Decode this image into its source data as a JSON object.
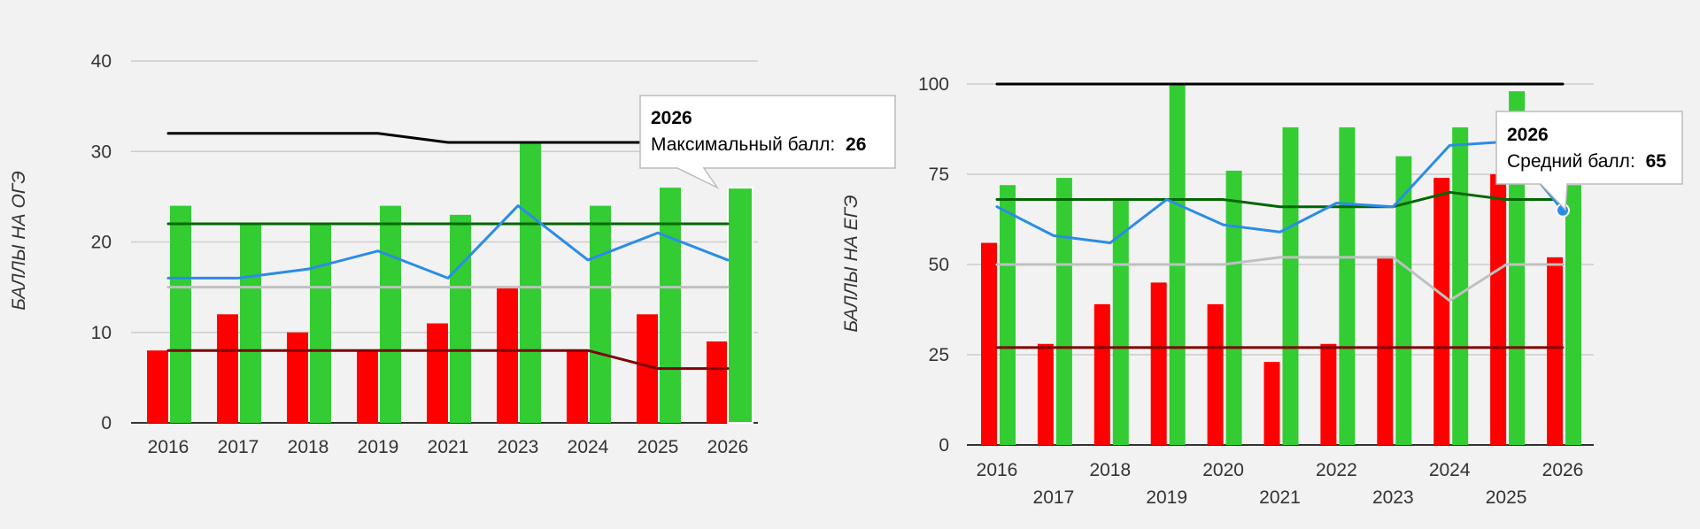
{
  "colors": {
    "background": "#f2f2f2",
    "grid": "#cccccc",
    "bar_min": "#ff0000",
    "bar_max": "#33cc33",
    "line_avg": "#2b8ce6",
    "line_threshold_max": "#000000",
    "line_dark_green": "#006600",
    "line_gray": "#c0c0c0",
    "line_dark_red": "#800000"
  },
  "chart_data": [
    {
      "type": "bar",
      "ylabel": "БАЛЛЫ НА ОГЭ",
      "ylim": [
        0,
        40
      ],
      "yticks": [
        0,
        10,
        20,
        30,
        40
      ],
      "categories": [
        "2016",
        "2017",
        "2018",
        "2019",
        "2021",
        "2023",
        "2024",
        "2025",
        "2026"
      ],
      "series": [
        {
          "type": "bar",
          "values": [
            8,
            12,
            10,
            8,
            11,
            15,
            8,
            12,
            9
          ]
        },
        {
          "type": "bar",
          "name": "Максимальный балл",
          "values": [
            24,
            22,
            22,
            24,
            23,
            31,
            24,
            26,
            26
          ]
        },
        {
          "type": "line",
          "values": [
            32,
            32,
            32,
            32,
            31,
            31,
            31,
            31,
            31
          ]
        },
        {
          "type": "line",
          "values": [
            22,
            22,
            22,
            22,
            22,
            22,
            22,
            22,
            22
          ]
        },
        {
          "type": "line",
          "values": [
            16,
            16,
            17,
            19,
            16,
            24,
            18,
            21,
            18
          ]
        },
        {
          "type": "line",
          "values": [
            15,
            15,
            15,
            15,
            15,
            15,
            15,
            15,
            15
          ]
        },
        {
          "type": "line",
          "values": [
            8,
            8,
            8,
            8,
            8,
            8,
            8,
            6,
            6
          ]
        }
      ],
      "tooltip": {
        "title": "2026",
        "label": "Максимальный балл:",
        "value": "26"
      }
    },
    {
      "type": "bar",
      "ylabel": "БАЛЛЫ НА ЕГЭ",
      "ylim": [
        0,
        100
      ],
      "yticks": [
        0,
        25,
        50,
        75,
        100
      ],
      "categories": [
        "2016",
        "2017",
        "2018",
        "2019",
        "2020",
        "2021",
        "2022",
        "2023",
        "2024",
        "2025",
        "2026"
      ],
      "series": [
        {
          "type": "bar",
          "values": [
            56,
            28,
            39,
            45,
            39,
            23,
            28,
            52,
            74,
            75,
            52
          ]
        },
        {
          "type": "bar",
          "values": [
            72,
            74,
            68,
            100,
            76,
            88,
            88,
            80,
            88,
            98,
            72
          ]
        },
        {
          "type": "line",
          "values": [
            100,
            100,
            100,
            100,
            100,
            100,
            100,
            100,
            100,
            100,
            100
          ]
        },
        {
          "type": "line",
          "values": [
            68,
            68,
            68,
            68,
            68,
            66,
            66,
            66,
            70,
            68,
            68
          ]
        },
        {
          "type": "line",
          "name": "Средний балл",
          "values": [
            66,
            58,
            56,
            68,
            61,
            59,
            67,
            66,
            83,
            84,
            65
          ]
        },
        {
          "type": "line",
          "values": [
            50,
            50,
            50,
            50,
            50,
            52,
            52,
            52,
            40,
            50,
            50
          ]
        },
        {
          "type": "line",
          "values": [
            27,
            27,
            27,
            27,
            27,
            27,
            27,
            27,
            27,
            27,
            27
          ]
        }
      ],
      "tooltip": {
        "title": "2026",
        "label": "Средний балл:",
        "value": "65"
      }
    }
  ]
}
